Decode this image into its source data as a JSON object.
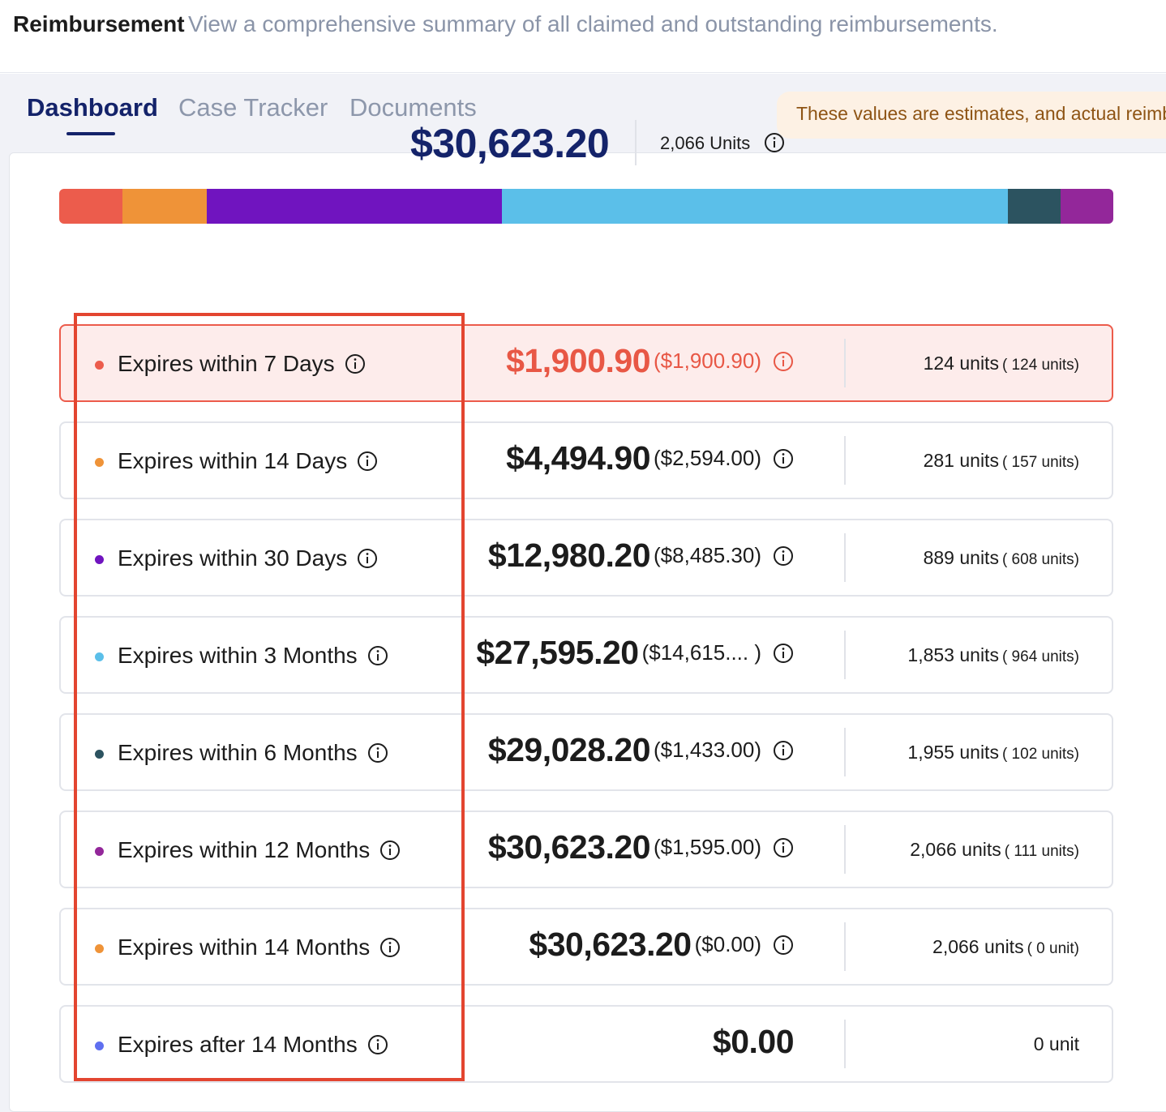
{
  "header": {
    "title": "Reimbursement",
    "subtitle": "View a comprehensive summary of all claimed and outstanding reimbursements."
  },
  "tabs": [
    {
      "label": "Dashboard",
      "active": true
    },
    {
      "label": "Case Tracker",
      "active": false
    },
    {
      "label": "Documents",
      "active": false
    }
  ],
  "notice": "These values are estimates, and actual reimb",
  "summary": {
    "total": "$30,623.20",
    "units": "2,066 Units"
  },
  "colors": {
    "accent_navy": "#14236a",
    "alert_red": "#e85745",
    "annotation": "#e34530"
  },
  "bar_segments": [
    {
      "color": "#ec5c4c",
      "share": 6
    },
    {
      "color": "#ef9338",
      "share": 8
    },
    {
      "color": "#7014bf",
      "share": 28
    },
    {
      "color": "#5bbfe9",
      "share": 48
    },
    {
      "color": "#2c5360",
      "share": 5
    },
    {
      "color": "#93279a",
      "share": 5
    }
  ],
  "rows": [
    {
      "label": "Expires within 7 Days",
      "dot": "#ec5c4c",
      "amount": "$1,900.90",
      "sub_amount": "($1,900.90)",
      "units": "124 units",
      "sub_units": "( 124 units)",
      "highlight": true
    },
    {
      "label": "Expires within 14 Days",
      "dot": "#ef9338",
      "amount": "$4,494.90",
      "sub_amount": "($2,594.00)",
      "units": "281 units",
      "sub_units": "( 157 units)",
      "highlight": false
    },
    {
      "label": "Expires within 30 Days",
      "dot": "#7014bf",
      "amount": "$12,980.20",
      "sub_amount": "($8,485.30)",
      "units": "889 units",
      "sub_units": "( 608 units)",
      "highlight": false
    },
    {
      "label": "Expires within 3 Months",
      "dot": "#5bbfe9",
      "amount": "$27,595.20",
      "sub_amount": "($14,615.... )",
      "units": "1,853 units",
      "sub_units": "( 964 units)",
      "highlight": false
    },
    {
      "label": "Expires within 6 Months",
      "dot": "#2c5360",
      "amount": "$29,028.20",
      "sub_amount": "($1,433.00)",
      "units": "1,955 units",
      "sub_units": "( 102 units)",
      "highlight": false
    },
    {
      "label": "Expires within 12 Months",
      "dot": "#93279a",
      "amount": "$30,623.20",
      "sub_amount": "($1,595.00)",
      "units": "2,066 units",
      "sub_units": "( 111 units)",
      "highlight": false
    },
    {
      "label": "Expires within 14 Months",
      "dot": "#ef9338",
      "amount": "$30,623.20",
      "sub_amount": "($0.00)",
      "units": "2,066 units",
      "sub_units": "( 0 unit)",
      "highlight": false
    },
    {
      "label": "Expires after 14 Months",
      "dot": "#5f6ff0",
      "amount": "$0.00",
      "sub_amount": "",
      "units": "0 unit",
      "sub_units": "",
      "highlight": false
    }
  ]
}
